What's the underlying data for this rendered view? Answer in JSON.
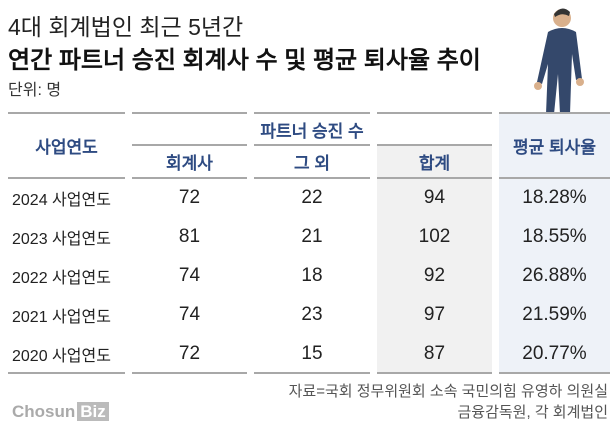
{
  "title_line1": "4대 회계법인 최근 5년간",
  "title_line2": "연간 파트너 승진 회계사 수 및 평균 퇴사율 추이",
  "unit": "단위: 명",
  "chart_data": {
    "type": "table",
    "headers": {
      "year": "사업연도",
      "group": "파트너 승진 수",
      "accountant": "회계사",
      "other": "그 외",
      "total": "합계",
      "rate": "평균 퇴사율"
    },
    "rows": [
      {
        "year": "2024 사업연도",
        "accountant": "72",
        "other": "22",
        "total": "94",
        "rate": "18.28%"
      },
      {
        "year": "2023 사업연도",
        "accountant": "81",
        "other": "21",
        "total": "102",
        "rate": "18.55%"
      },
      {
        "year": "2022 사업연도",
        "accountant": "74",
        "other": "18",
        "total": "92",
        "rate": "26.88%"
      },
      {
        "year": "2021 사업연도",
        "accountant": "74",
        "other": "23",
        "total": "97",
        "rate": "21.59%"
      },
      {
        "year": "2020 사업연도",
        "accountant": "72",
        "other": "15",
        "total": "87",
        "rate": "20.77%"
      }
    ]
  },
  "source_line1": "자료=국회 정무위원회 소속 국민의힘 유영하 의원실",
  "source_line2": "금융감독원, 각 회계법인",
  "logo": "ChosunBiz",
  "colors": {
    "header_text": "#2e4b82",
    "total_bg": "#f1f1f1",
    "rate_bg": "#eef2f8"
  }
}
